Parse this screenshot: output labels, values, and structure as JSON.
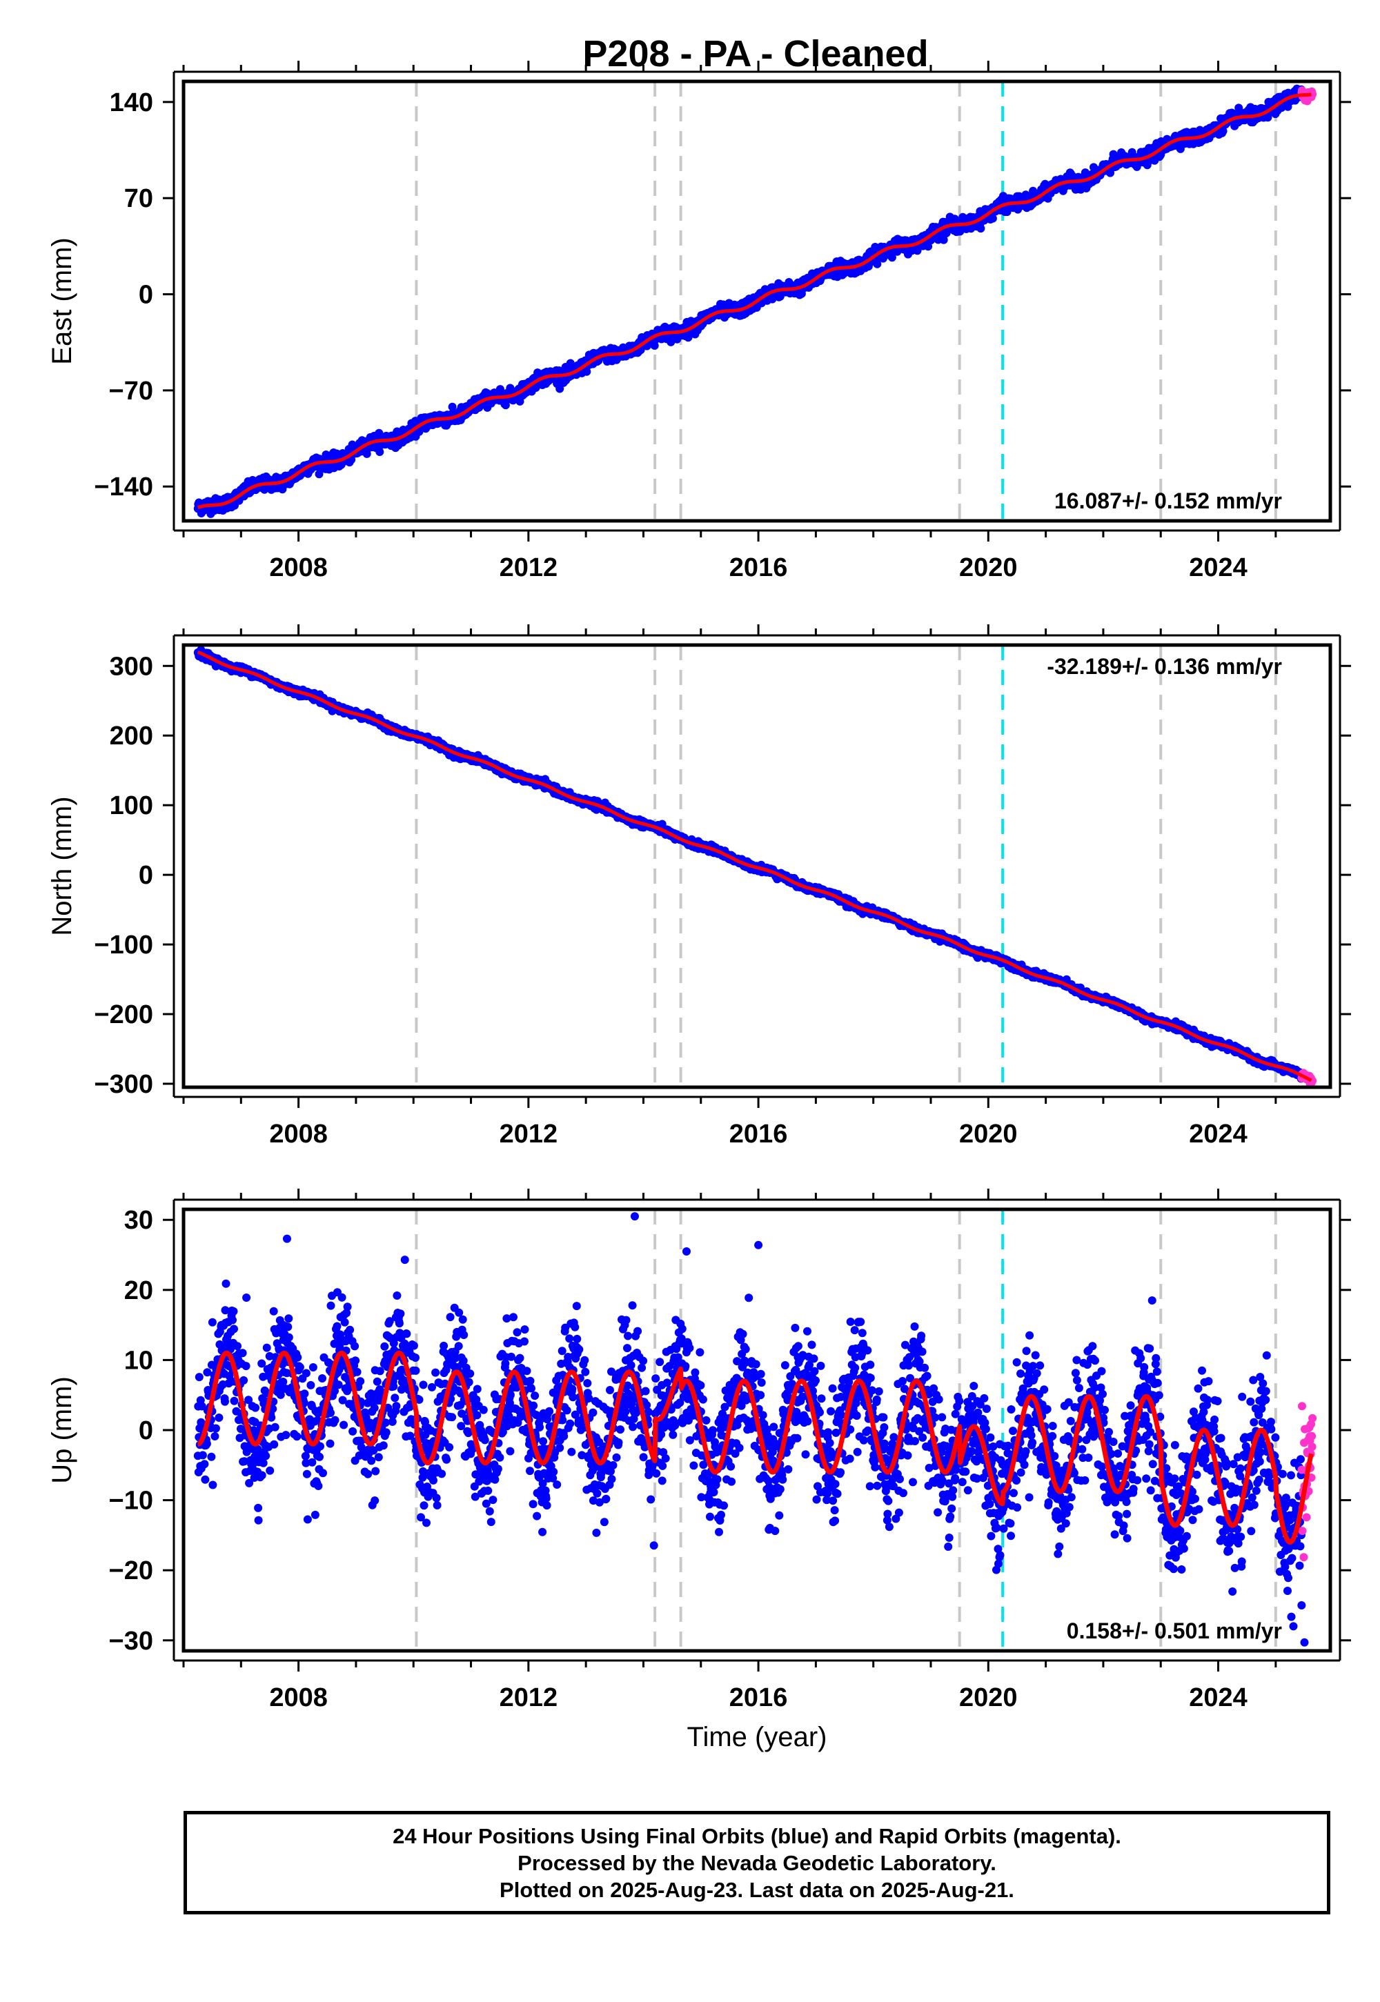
{
  "title": "P208  - PA - Cleaned",
  "footer": {
    "line1": "24 Hour Positions Using Final Orbits (blue) and Rapid Orbits (magenta).",
    "line2": "Processed by the Nevada Geodetic Laboratory.",
    "line3": "Plotted on 2025-Aug-23. Last data on 2025-Aug-21."
  },
  "colors": {
    "final_points": "#0000ff",
    "rapid_points": "#ff33cc",
    "model_line": "#ff0000",
    "event_lines": "#c8c8c8",
    "equipment_line": "#00e5ee"
  },
  "chart_data": [
    {
      "type": "scatter",
      "title": "P208  - PA - Cleaned",
      "xlabel": "",
      "ylabel": "East (mm)",
      "xlim": [
        2006.0,
        2025.95
      ],
      "ylim": [
        -165,
        155
      ],
      "xticks": [
        2008,
        2012,
        2016,
        2020,
        2024
      ],
      "yticks": [
        -140,
        -70,
        0,
        70,
        140
      ],
      "grid": false,
      "legend": "none",
      "annotation": "16.087+/- 0.152 mm/yr",
      "annotation_position": "bottom-right",
      "trend": {
        "rate_mm_per_yr": 16.087,
        "start": [
          2006.25,
          -157.5
        ],
        "end": [
          2025.62,
          147.0
        ]
      },
      "data_start": 2006.25,
      "data_end": 2025.64,
      "rapid_start": 2025.45,
      "event_lines_x": [
        2010.05,
        2014.2,
        2014.65,
        2019.5,
        2023.0,
        2025.0
      ],
      "equipment_line_x": 2020.25
    },
    {
      "type": "scatter",
      "xlabel": "",
      "ylabel": "North (mm)",
      "xlim": [
        2006.0,
        2025.95
      ],
      "ylim": [
        -305,
        330
      ],
      "xticks": [
        2008,
        2012,
        2016,
        2020,
        2024
      ],
      "yticks": [
        -300,
        -200,
        -100,
        0,
        100,
        200,
        300
      ],
      "grid": false,
      "legend": "none",
      "annotation": "-32.189+/- 0.136 mm/yr",
      "annotation_position": "top-right",
      "trend": {
        "rate_mm_per_yr": -32.189,
        "start": [
          2006.25,
          318.0
        ],
        "end": [
          2025.62,
          -294.0
        ]
      },
      "data_start": 2006.25,
      "data_end": 2025.64,
      "rapid_start": 2025.45,
      "event_lines_x": [
        2010.05,
        2014.2,
        2014.65,
        2019.5,
        2023.0,
        2025.0
      ],
      "equipment_line_x": 2020.25
    },
    {
      "type": "scatter",
      "xlabel": "Time (year)",
      "ylabel": "Up (mm)",
      "xlim": [
        2006.0,
        2025.95
      ],
      "ylim": [
        -31.5,
        31.5
      ],
      "xticks": [
        2008,
        2012,
        2016,
        2020,
        2024
      ],
      "yticks": [
        -30,
        -20,
        -10,
        0,
        10,
        20,
        30
      ],
      "grid": false,
      "legend": "none",
      "annotation": "0.158+/- 0.501 mm/yr",
      "annotation_position": "bottom-right",
      "seasonal_model": {
        "phase_peak_fraction_of_year": 0.75,
        "segments": [
          {
            "x0": 2006.25,
            "x1": 2010.05,
            "offset": 4.5,
            "amplitude": 6.5
          },
          {
            "x0": 2010.05,
            "x1": 2014.2,
            "offset": 1.8,
            "amplitude": 6.5
          },
          {
            "x0": 2014.2,
            "x1": 2014.65,
            "offset": 5.5,
            "amplitude": 4.0
          },
          {
            "x0": 2014.65,
            "x1": 2019.5,
            "offset": 0.5,
            "amplitude": 6.5
          },
          {
            "x0": 2019.5,
            "x1": 2020.25,
            "offset": -5.0,
            "amplitude": 5.5
          },
          {
            "x0": 2020.25,
            "x1": 2023.0,
            "offset": -2.0,
            "amplitude": 6.8
          },
          {
            "x0": 2023.0,
            "x1": 2025.0,
            "offset": -6.8,
            "amplitude": 6.8
          },
          {
            "x0": 2025.0,
            "x1": 2025.62,
            "offset": -8.5,
            "amplitude": 7.5
          }
        ]
      },
      "scatter_noise_mm": 4.2,
      "outliers": [
        [
          2013.85,
          30.5
        ],
        [
          2007.8,
          27.3
        ],
        [
          2016.0,
          26.4
        ],
        [
          2014.75,
          25.5
        ],
        [
          2009.85,
          24.3
        ],
        [
          2022.85,
          18.5
        ],
        [
          2025.5,
          -30.3
        ],
        [
          2025.45,
          -25.0
        ]
      ],
      "data_start": 2006.25,
      "data_end": 2025.64,
      "rapid_start": 2025.45,
      "event_lines_x": [
        2010.05,
        2014.2,
        2014.65,
        2019.5,
        2023.0,
        2025.0
      ],
      "equipment_line_x": 2020.25
    }
  ]
}
